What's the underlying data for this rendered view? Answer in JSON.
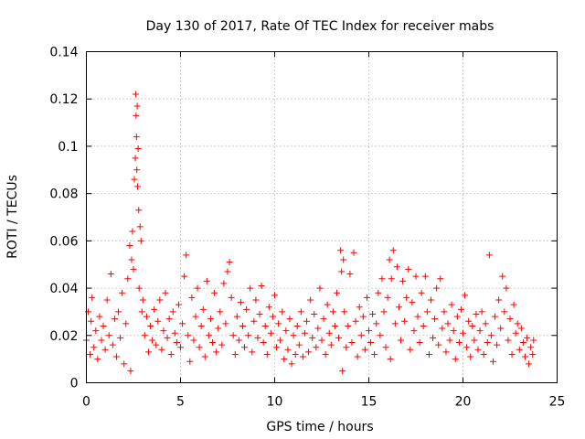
{
  "chart_data": {
    "type": "scatter",
    "title": "Day 130 of 2017, Rate Of TEC Index for receiver mabs",
    "xlabel": "GPS time / hours",
    "ylabel": "ROTI / TECUs",
    "xlim": [
      0,
      25
    ],
    "ylim": [
      0,
      0.14
    ],
    "x_ticks": [
      0,
      5,
      10,
      15,
      20,
      25
    ],
    "x_tick_labels": [
      "0",
      "5",
      "10",
      "15",
      "20",
      "25"
    ],
    "y_ticks": [
      0,
      0.02,
      0.04,
      0.06,
      0.08,
      0.1,
      0.12,
      0.14
    ],
    "y_tick_labels": [
      "0",
      "0.02",
      "0.04",
      "0.06",
      "0.08",
      "0.1",
      "0.12",
      "0.14"
    ],
    "grid": true,
    "marker": "+",
    "marker_color": "#ff0000",
    "x_data_range": [
      0,
      23.75
    ],
    "points": [
      [
        0.0,
        0.018
      ],
      [
        0.1,
        0.03
      ],
      [
        0.2,
        0.012
      ],
      [
        0.25,
        0.026
      ],
      [
        0.3,
        0.036
      ],
      [
        0.4,
        0.015
      ],
      [
        0.5,
        0.022
      ],
      [
        0.6,
        0.01
      ],
      [
        0.7,
        0.028
      ],
      [
        0.8,
        0.018
      ],
      [
        0.9,
        0.024
      ],
      [
        1.0,
        0.014
      ],
      [
        1.1,
        0.035
      ],
      [
        1.2,
        0.02
      ],
      [
        1.3,
        0.046
      ],
      [
        1.4,
        0.016
      ],
      [
        1.5,
        0.027
      ],
      [
        1.6,
        0.011
      ],
      [
        1.7,
        0.03
      ],
      [
        1.8,
        0.019
      ],
      [
        1.9,
        0.038
      ],
      [
        2.0,
        0.008
      ],
      [
        2.1,
        0.025
      ],
      [
        2.2,
        0.044
      ],
      [
        2.3,
        0.058
      ],
      [
        2.35,
        0.005
      ],
      [
        2.4,
        0.052
      ],
      [
        2.45,
        0.064
      ],
      [
        2.5,
        0.048
      ],
      [
        2.55,
        0.086
      ],
      [
        2.6,
        0.095
      ],
      [
        2.62,
        0.122
      ],
      [
        2.64,
        0.113
      ],
      [
        2.66,
        0.104
      ],
      [
        2.68,
        0.09
      ],
      [
        2.7,
        0.117
      ],
      [
        2.72,
        0.083
      ],
      [
        2.75,
        0.099
      ],
      [
        2.78,
        0.073
      ],
      [
        2.8,
        0.04
      ],
      [
        2.85,
        0.066
      ],
      [
        2.9,
        0.06
      ],
      [
        2.95,
        0.03
      ],
      [
        3.0,
        0.035
      ],
      [
        3.1,
        0.02
      ],
      [
        3.2,
        0.028
      ],
      [
        3.3,
        0.013
      ],
      [
        3.4,
        0.024
      ],
      [
        3.5,
        0.018
      ],
      [
        3.6,
        0.031
      ],
      [
        3.7,
        0.016
      ],
      [
        3.8,
        0.026
      ],
      [
        3.9,
        0.035
      ],
      [
        4.0,
        0.014
      ],
      [
        4.1,
        0.022
      ],
      [
        4.2,
        0.038
      ],
      [
        4.3,
        0.019
      ],
      [
        4.4,
        0.027
      ],
      [
        4.5,
        0.012
      ],
      [
        4.6,
        0.03
      ],
      [
        4.7,
        0.021
      ],
      [
        4.8,
        0.017
      ],
      [
        4.9,
        0.033
      ],
      [
        5.0,
        0.015
      ],
      [
        5.1,
        0.025
      ],
      [
        5.2,
        0.045
      ],
      [
        5.3,
        0.054
      ],
      [
        5.4,
        0.02
      ],
      [
        5.5,
        0.009
      ],
      [
        5.6,
        0.036
      ],
      [
        5.7,
        0.018
      ],
      [
        5.8,
        0.028
      ],
      [
        5.9,
        0.04
      ],
      [
        6.0,
        0.015
      ],
      [
        6.1,
        0.024
      ],
      [
        6.2,
        0.031
      ],
      [
        6.3,
        0.011
      ],
      [
        6.4,
        0.043
      ],
      [
        6.5,
        0.02
      ],
      [
        6.6,
        0.027
      ],
      [
        6.7,
        0.017
      ],
      [
        6.8,
        0.038
      ],
      [
        6.9,
        0.013
      ],
      [
        7.0,
        0.023
      ],
      [
        7.1,
        0.03
      ],
      [
        7.2,
        0.016
      ],
      [
        7.3,
        0.042
      ],
      [
        7.4,
        0.025
      ],
      [
        7.5,
        0.047
      ],
      [
        7.6,
        0.051
      ],
      [
        7.7,
        0.036
      ],
      [
        7.8,
        0.02
      ],
      [
        7.9,
        0.012
      ],
      [
        8.0,
        0.028
      ],
      [
        8.1,
        0.018
      ],
      [
        8.2,
        0.034
      ],
      [
        8.3,
        0.024
      ],
      [
        8.4,
        0.015
      ],
      [
        8.5,
        0.031
      ],
      [
        8.6,
        0.02
      ],
      [
        8.7,
        0.04
      ],
      [
        8.8,
        0.013
      ],
      [
        8.9,
        0.026
      ],
      [
        9.0,
        0.035
      ],
      [
        9.1,
        0.019
      ],
      [
        9.2,
        0.029
      ],
      [
        9.3,
        0.041
      ],
      [
        9.4,
        0.017
      ],
      [
        9.5,
        0.024
      ],
      [
        9.6,
        0.012
      ],
      [
        9.7,
        0.032
      ],
      [
        9.8,
        0.021
      ],
      [
        9.9,
        0.028
      ],
      [
        10.0,
        0.037
      ],
      [
        10.1,
        0.015
      ],
      [
        10.2,
        0.025
      ],
      [
        10.3,
        0.018
      ],
      [
        10.4,
        0.03
      ],
      [
        10.5,
        0.01
      ],
      [
        10.6,
        0.022
      ],
      [
        10.7,
        0.014
      ],
      [
        10.8,
        0.027
      ],
      [
        10.9,
        0.008
      ],
      [
        11.0,
        0.02
      ],
      [
        11.1,
        0.012
      ],
      [
        11.2,
        0.024
      ],
      [
        11.3,
        0.016
      ],
      [
        11.4,
        0.03
      ],
      [
        11.5,
        0.011
      ],
      [
        11.6,
        0.021
      ],
      [
        11.7,
        0.026
      ],
      [
        11.8,
        0.013
      ],
      [
        11.9,
        0.035
      ],
      [
        12.0,
        0.019
      ],
      [
        12.1,
        0.029
      ],
      [
        12.2,
        0.015
      ],
      [
        12.3,
        0.023
      ],
      [
        12.4,
        0.04
      ],
      [
        12.5,
        0.018
      ],
      [
        12.6,
        0.027
      ],
      [
        12.7,
        0.012
      ],
      [
        12.8,
        0.033
      ],
      [
        12.9,
        0.021
      ],
      [
        13.0,
        0.016
      ],
      [
        13.1,
        0.03
      ],
      [
        13.2,
        0.024
      ],
      [
        13.3,
        0.038
      ],
      [
        13.4,
        0.019
      ],
      [
        13.5,
        0.056
      ],
      [
        13.55,
        0.047
      ],
      [
        13.6,
        0.005
      ],
      [
        13.65,
        0.052
      ],
      [
        13.7,
        0.03
      ],
      [
        13.8,
        0.015
      ],
      [
        13.9,
        0.024
      ],
      [
        14.0,
        0.046
      ],
      [
        14.1,
        0.017
      ],
      [
        14.2,
        0.055
      ],
      [
        14.3,
        0.026
      ],
      [
        14.4,
        0.011
      ],
      [
        14.5,
        0.032
      ],
      [
        14.6,
        0.02
      ],
      [
        14.7,
        0.028
      ],
      [
        14.8,
        0.014
      ],
      [
        14.9,
        0.036
      ],
      [
        15.0,
        0.022
      ],
      [
        15.1,
        0.017
      ],
      [
        15.2,
        0.029
      ],
      [
        15.3,
        0.012
      ],
      [
        15.4,
        0.025
      ],
      [
        15.5,
        0.038
      ],
      [
        15.6,
        0.02
      ],
      [
        15.7,
        0.044
      ],
      [
        15.8,
        0.03
      ],
      [
        15.9,
        0.015
      ],
      [
        16.0,
        0.036
      ],
      [
        16.1,
        0.052
      ],
      [
        16.15,
        0.01
      ],
      [
        16.2,
        0.044
      ],
      [
        16.3,
        0.056
      ],
      [
        16.4,
        0.025
      ],
      [
        16.5,
        0.049
      ],
      [
        16.6,
        0.032
      ],
      [
        16.7,
        0.018
      ],
      [
        16.8,
        0.043
      ],
      [
        16.9,
        0.026
      ],
      [
        17.0,
        0.036
      ],
      [
        17.1,
        0.048
      ],
      [
        17.2,
        0.014
      ],
      [
        17.3,
        0.034
      ],
      [
        17.4,
        0.022
      ],
      [
        17.5,
        0.045
      ],
      [
        17.6,
        0.028
      ],
      [
        17.7,
        0.017
      ],
      [
        17.8,
        0.038
      ],
      [
        17.9,
        0.024
      ],
      [
        18.0,
        0.045
      ],
      [
        18.1,
        0.03
      ],
      [
        18.2,
        0.012
      ],
      [
        18.3,
        0.035
      ],
      [
        18.4,
        0.019
      ],
      [
        18.5,
        0.027
      ],
      [
        18.6,
        0.04
      ],
      [
        18.7,
        0.016
      ],
      [
        18.8,
        0.044
      ],
      [
        18.9,
        0.023
      ],
      [
        19.0,
        0.03
      ],
      [
        19.1,
        0.013
      ],
      [
        19.2,
        0.025
      ],
      [
        19.3,
        0.018
      ],
      [
        19.4,
        0.033
      ],
      [
        19.5,
        0.022
      ],
      [
        19.6,
        0.01
      ],
      [
        19.7,
        0.028
      ],
      [
        19.8,
        0.017
      ],
      [
        19.9,
        0.031
      ],
      [
        20.0,
        0.021
      ],
      [
        20.1,
        0.037
      ],
      [
        20.2,
        0.015
      ],
      [
        20.3,
        0.026
      ],
      [
        20.4,
        0.011
      ],
      [
        20.5,
        0.024
      ],
      [
        20.6,
        0.018
      ],
      [
        20.7,
        0.029
      ],
      [
        20.8,
        0.014
      ],
      [
        20.9,
        0.022
      ],
      [
        21.0,
        0.03
      ],
      [
        21.1,
        0.012
      ],
      [
        21.2,
        0.025
      ],
      [
        21.3,
        0.017
      ],
      [
        21.4,
        0.054
      ],
      [
        21.5,
        0.02
      ],
      [
        21.6,
        0.009
      ],
      [
        21.7,
        0.028
      ],
      [
        21.8,
        0.016
      ],
      [
        21.9,
        0.035
      ],
      [
        22.0,
        0.023
      ],
      [
        22.1,
        0.045
      ],
      [
        22.2,
        0.03
      ],
      [
        22.3,
        0.04
      ],
      [
        22.4,
        0.018
      ],
      [
        22.5,
        0.027
      ],
      [
        22.6,
        0.012
      ],
      [
        22.7,
        0.033
      ],
      [
        22.8,
        0.021
      ],
      [
        22.9,
        0.025
      ],
      [
        23.0,
        0.014
      ],
      [
        23.1,
        0.023
      ],
      [
        23.2,
        0.017
      ],
      [
        23.3,
        0.011
      ],
      [
        23.4,
        0.019
      ],
      [
        23.5,
        0.008
      ],
      [
        23.6,
        0.015
      ],
      [
        23.7,
        0.012
      ],
      [
        23.75,
        0.018
      ]
    ]
  }
}
